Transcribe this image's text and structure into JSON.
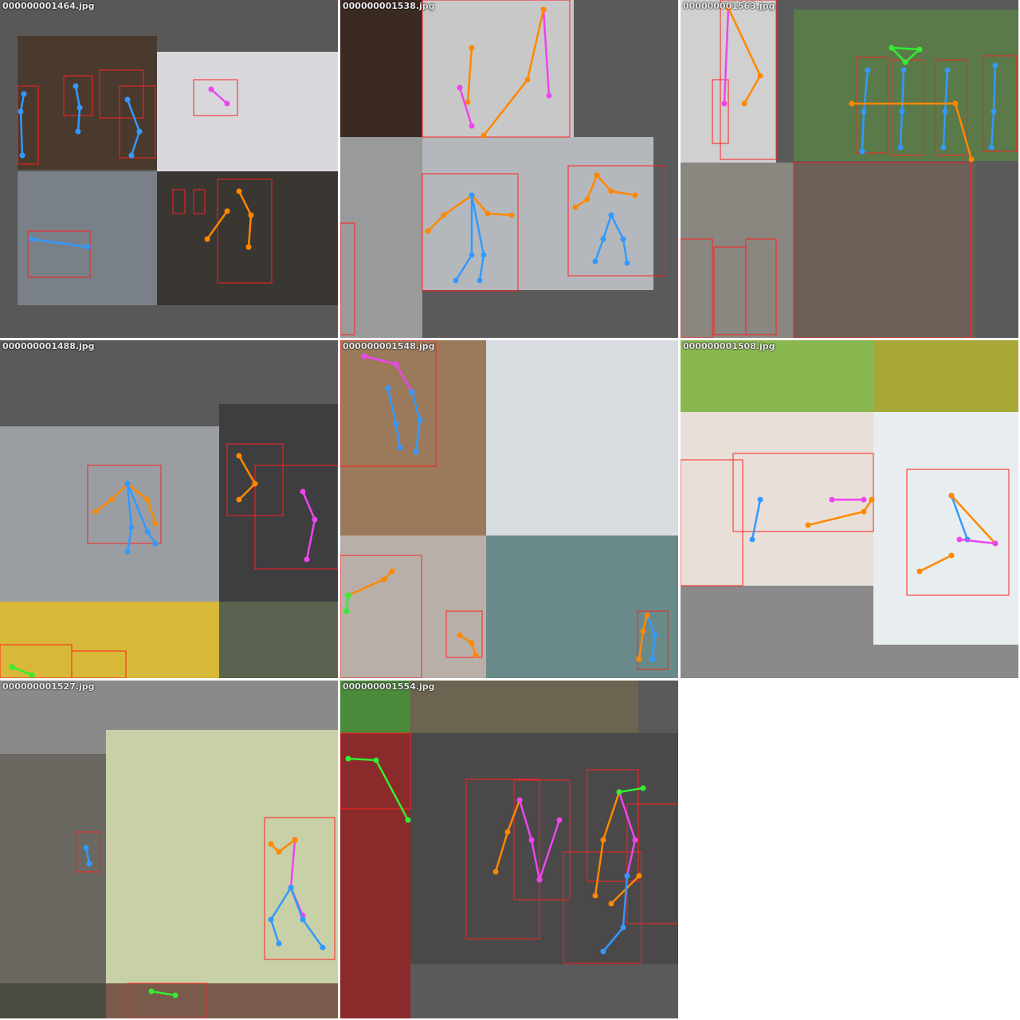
{
  "grid": {
    "cells": [
      {
        "label": "000000001464.jpg"
      },
      {
        "label": "000000001538.jpg"
      },
      {
        "label": "000000001563.jpg"
      },
      {
        "label": "000000001488.jpg"
      },
      {
        "label": "000000001548.jpg"
      },
      {
        "label": "000000001508.jpg"
      },
      {
        "label": "000000001527.jpg"
      },
      {
        "label": "000000001554.jpg"
      }
    ]
  },
  "colors": {
    "box": "#ff2020",
    "head": "#33ee33",
    "arms": "#ff8800",
    "torso": "#ee44ee",
    "legs": "#3399ff",
    "canvas_gray": "#5a5a5a",
    "light_gray": "#8a8a8a"
  }
}
